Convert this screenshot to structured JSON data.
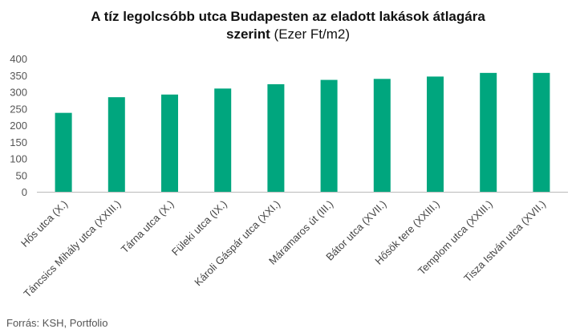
{
  "title": {
    "line1": "A tíz legolcsóbb utca Budapesten az eladott lakások átlagára",
    "line2_bold": "szerint",
    "line2_unit": "(Ezer Ft/m2)"
  },
  "source": "Forrás: KSH, Portfolio",
  "colors": {
    "bar": "#00a67e",
    "axis": "#bbbbbb"
  },
  "chart_data": {
    "type": "bar",
    "title": "A tíz legolcsóbb utca Budapesten az eladott lakások átlagára szerint (Ezer Ft/m2)",
    "categories": [
      "Hős utca (X.)",
      "Táncsics Mihály utca (XXIII.)",
      "Tárna utca (X.)",
      "Füleki utca (IX.)",
      "Károli Gáspár utca (XXI.)",
      "Máramaros út (III.)",
      "Bátor utca (XVII.)",
      "Hősök tere (XXIII.)",
      "Templom utca (XXIII.)",
      "Tisza István utca (XVII.)"
    ],
    "values": [
      237,
      284,
      292,
      310,
      323,
      336,
      339,
      346,
      357,
      357
    ],
    "ylim": [
      0,
      400
    ],
    "yticks": [
      0,
      50,
      100,
      150,
      200,
      250,
      300,
      350,
      400
    ],
    "grid": false,
    "legend": "none"
  }
}
